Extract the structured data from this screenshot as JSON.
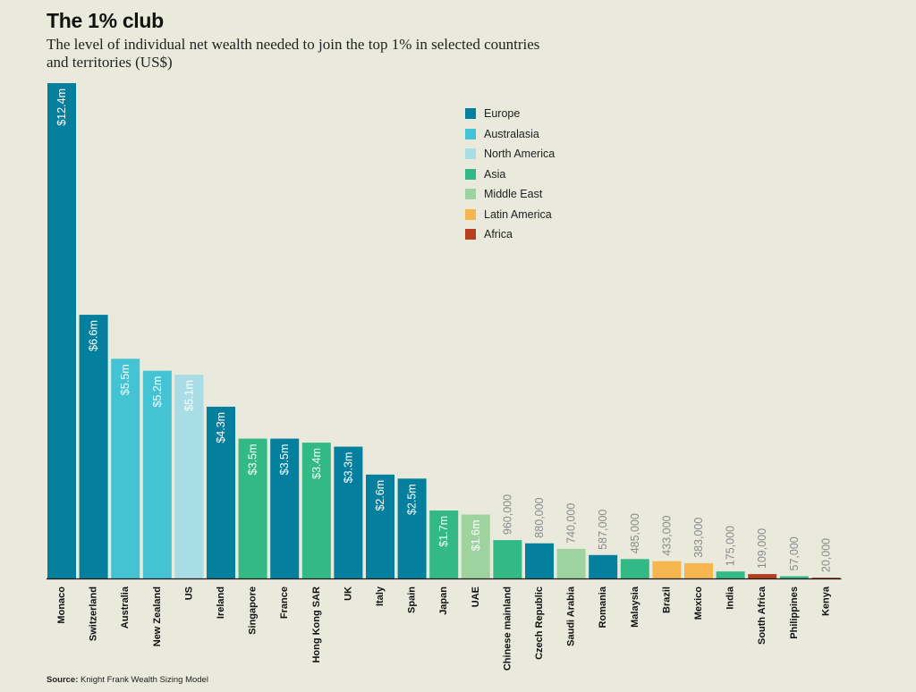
{
  "title": "The 1% club",
  "subtitle": "The level of individual net wealth needed to join the top 1% in selected countries and territories (US$)",
  "source_label": "Source:",
  "source_text": "Knight Frank Wealth Sizing Model",
  "colors": {
    "Europe": "#047f9e",
    "Australasia": "#43c3d3",
    "North America": "#a9dde6",
    "Asia": "#33b985",
    "Middle East": "#9ed39f",
    "Latin America": "#f5b64f",
    "Africa": "#b5401f",
    "axis": "#1a1a1a",
    "light_label": "#8a8a8a",
    "inner_label": "#ffffff"
  },
  "legend": [
    {
      "label": "Europe",
      "color": "#047f9e"
    },
    {
      "label": "Australasia",
      "color": "#43c3d3"
    },
    {
      "label": "North America",
      "color": "#a9dde6"
    },
    {
      "label": "Asia",
      "color": "#33b985"
    },
    {
      "label": "Middle East",
      "color": "#9ed39f"
    },
    {
      "label": "Latin America",
      "color": "#f5b64f"
    },
    {
      "label": "Africa",
      "color": "#b5401f"
    }
  ],
  "chart_data": {
    "type": "bar",
    "title": "The 1% club",
    "xlabel": "",
    "ylabel": "",
    "ylim": [
      0,
      12400000
    ],
    "grid": false,
    "legend_position": "top-right",
    "bars": [
      {
        "category": "Monaco",
        "value": 12400000,
        "label": "$12.4m",
        "region": "Europe"
      },
      {
        "category": "Switzerland",
        "value": 6600000,
        "label": "$6.6m",
        "region": "Europe"
      },
      {
        "category": "Australia",
        "value": 5500000,
        "label": "$5.5m",
        "region": "Australasia"
      },
      {
        "category": "New Zealand",
        "value": 5200000,
        "label": "$5.2m",
        "region": "Australasia"
      },
      {
        "category": "US",
        "value": 5100000,
        "label": "$5.1m",
        "region": "North America"
      },
      {
        "category": "Ireland",
        "value": 4300000,
        "label": "$4.3m",
        "region": "Europe"
      },
      {
        "category": "Singapore",
        "value": 3500000,
        "label": "$3.5m",
        "region": "Asia"
      },
      {
        "category": "France",
        "value": 3500000,
        "label": "$3.5m",
        "region": "Europe"
      },
      {
        "category": "Hong Kong SAR",
        "value": 3400000,
        "label": "$3.4m",
        "region": "Asia"
      },
      {
        "category": "UK",
        "value": 3300000,
        "label": "$3.3m",
        "region": "Europe"
      },
      {
        "category": "Italy",
        "value": 2600000,
        "label": "$2.6m",
        "region": "Europe"
      },
      {
        "category": "Spain",
        "value": 2500000,
        "label": "$2.5m",
        "region": "Europe"
      },
      {
        "category": "Japan",
        "value": 1700000,
        "label": "$1.7m",
        "region": "Asia"
      },
      {
        "category": "UAE",
        "value": 1600000,
        "label": "$1.6m",
        "region": "Middle East"
      },
      {
        "category": "Chinese mainland",
        "value": 960000,
        "label": "960,000",
        "region": "Asia"
      },
      {
        "category": "Czech Republic",
        "value": 880000,
        "label": "880,000",
        "region": "Europe"
      },
      {
        "category": "Saudi Arabia",
        "value": 740000,
        "label": "740,000",
        "region": "Middle East"
      },
      {
        "category": "Romania",
        "value": 587000,
        "label": "587,000",
        "region": "Europe"
      },
      {
        "category": "Malaysia",
        "value": 485000,
        "label": "485,000",
        "region": "Asia"
      },
      {
        "category": "Brazil",
        "value": 433000,
        "label": "433,000",
        "region": "Latin America"
      },
      {
        "category": "Mexico",
        "value": 383000,
        "label": "383,000",
        "region": "Latin America"
      },
      {
        "category": "India",
        "value": 175000,
        "label": "175,000",
        "region": "Asia"
      },
      {
        "category": "South Africa",
        "value": 109000,
        "label": "109,000",
        "region": "Africa"
      },
      {
        "category": "Philippines",
        "value": 57000,
        "label": "57,000",
        "region": "Asia"
      },
      {
        "category": "Kenya",
        "value": 20000,
        "label": "20,000",
        "region": "Africa"
      }
    ]
  }
}
